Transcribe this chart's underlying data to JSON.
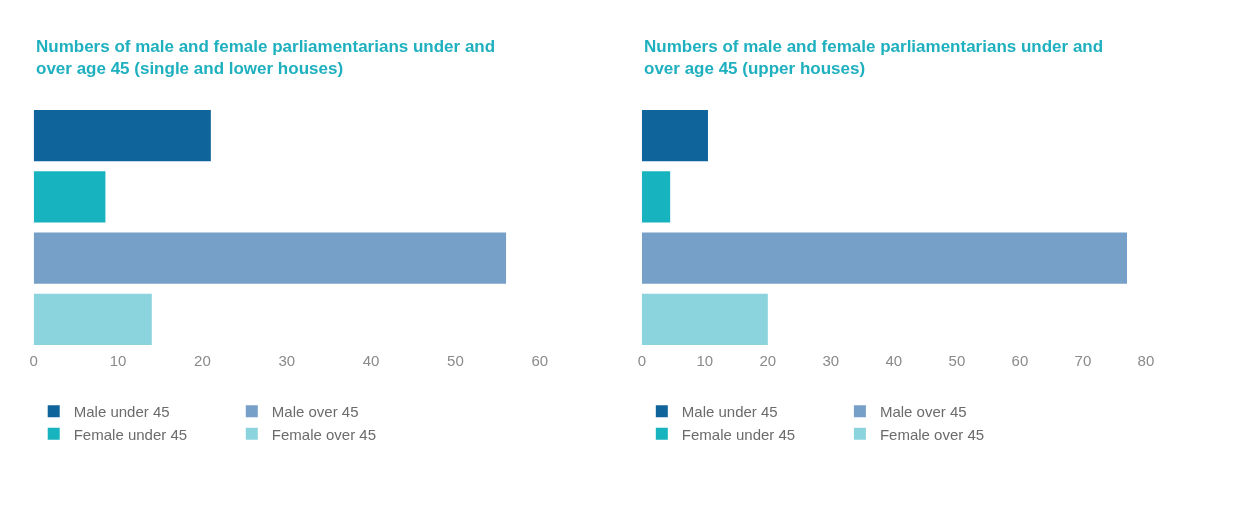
{
  "chart_data": [
    {
      "type": "bar",
      "orientation": "horizontal",
      "title": "Numbers of male and female parliamentarians under and over age 45 (single and lower houses)",
      "categories": [
        null
      ],
      "series": [
        {
          "name": "Male under 45",
          "color": "#0f659b",
          "values": [
            21
          ]
        },
        {
          "name": "Female under 45",
          "color": "#17b3bf",
          "values": [
            8.5
          ]
        },
        {
          "name": "Male over 45",
          "color": "#77a0c8",
          "values": [
            56
          ]
        },
        {
          "name": "Female over 45",
          "color": "#8cd4dd",
          "values": [
            14
          ]
        }
      ],
      "xlim": [
        0,
        60
      ],
      "xticks": [
        0,
        10,
        20,
        30,
        40,
        50,
        60
      ],
      "tick_labels": "x",
      "legend": "bottom"
    },
    {
      "type": "bar",
      "orientation": "horizontal",
      "title": "Numbers of male and female parliamentarians under and over age 45 (upper houses)",
      "categories": [
        null
      ],
      "series": [
        {
          "name": "Male under 45",
          "color": "#0f659b",
          "values": [
            10.5
          ]
        },
        {
          "name": "Female under 45",
          "color": "#17b3bf",
          "values": [
            4.5
          ]
        },
        {
          "name": "Male over 45",
          "color": "#77a0c8",
          "values": [
            77
          ]
        },
        {
          "name": "Female over 45",
          "color": "#8cd4dd",
          "values": [
            20
          ]
        }
      ],
      "xlim": [
        0,
        80
      ],
      "xticks": [
        0,
        10,
        20,
        30,
        40,
        50,
        60,
        70,
        80
      ],
      "tick_labels": "x",
      "legend": "bottom"
    }
  ]
}
